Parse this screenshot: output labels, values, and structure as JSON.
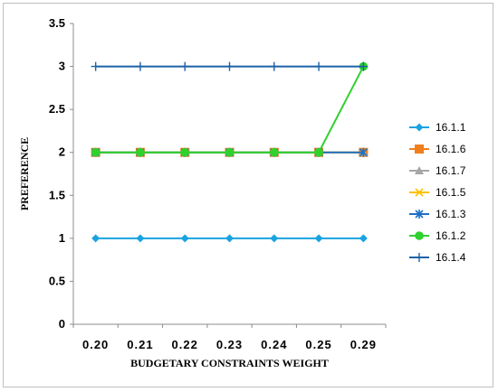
{
  "chart_data": {
    "type": "line",
    "title": "",
    "xlabel": "BUDGETARY CONSTRAINTS WEIGHT",
    "ylabel": "PREFERENCE",
    "categories": [
      "0.20",
      "0.21",
      "0.22",
      "0.23",
      "0.24",
      "0.25",
      "0.29"
    ],
    "ylim": [
      0,
      3.5
    ],
    "yticks": [
      "0",
      "0.5",
      "1",
      "1.5",
      "2",
      "2.5",
      "3",
      "3.5"
    ],
    "grid": false,
    "legend_position": "right",
    "series": [
      {
        "name": "16.1.1",
        "values": [
          1,
          1,
          1,
          1,
          1,
          1,
          1
        ],
        "color": "#1aa3e0",
        "marker": "diamond"
      },
      {
        "name": "16.1.6",
        "values": [
          2,
          2,
          2,
          2,
          2,
          2,
          2
        ],
        "color": "#f07f1c",
        "marker": "square"
      },
      {
        "name": "16.1.7",
        "values": [
          2,
          2,
          2,
          2,
          2,
          2,
          2
        ],
        "color": "#a6a6a6",
        "marker": "triangle"
      },
      {
        "name": "16.1.5",
        "values": [
          2,
          2,
          2,
          2,
          2,
          2,
          2
        ],
        "color": "#ffc000",
        "marker": "x"
      },
      {
        "name": "16.1.3",
        "values": [
          2,
          2,
          2,
          2,
          2,
          2,
          2
        ],
        "color": "#1f6fc5",
        "marker": "star"
      },
      {
        "name": "16.1.2",
        "values": [
          2,
          2,
          2,
          2,
          2,
          2,
          3
        ],
        "color": "#2ed12e",
        "marker": "circle"
      },
      {
        "name": "16.1.4",
        "values": [
          3,
          3,
          3,
          3,
          3,
          3,
          3
        ],
        "color": "#1c62a8",
        "marker": "plus"
      }
    ]
  }
}
